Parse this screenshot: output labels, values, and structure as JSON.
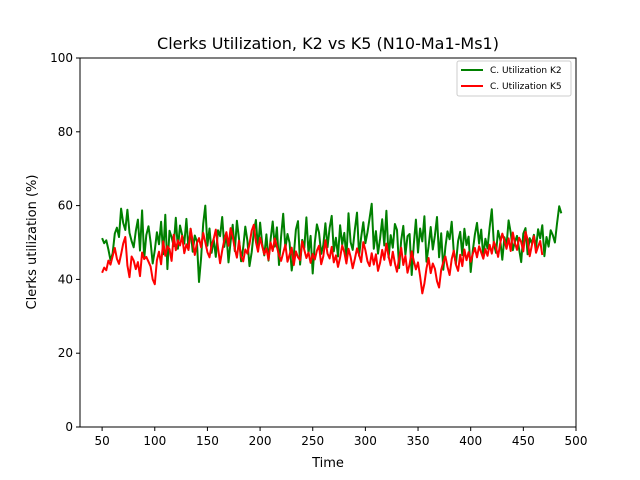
{
  "chart_data": {
    "type": "line",
    "title": "Clerks Utilization, K2 vs K5 (N10-Ma1-Ms1)",
    "xlabel": "Time",
    "ylabel": "Clerks utilization (%)",
    "xlim": [
      29,
      500
    ],
    "ylim": [
      0,
      100
    ],
    "xticks": [
      50,
      100,
      150,
      200,
      250,
      300,
      350,
      400,
      450,
      500
    ],
    "yticks": [
      0,
      20,
      40,
      60,
      80,
      100
    ],
    "grid": false,
    "legend_position": "top-right",
    "x_start": 50,
    "x_step": 2,
    "series": [
      {
        "name": "C. Utilization K2",
        "color": "#008000",
        "values": [
          51.2,
          49.8,
          50.6,
          48.1,
          45.2,
          47.0,
          52.4,
          54.0,
          51.5,
          59.2,
          55.3,
          53.4,
          58.9,
          52.6,
          50.4,
          48.7,
          53.1,
          56.2,
          47.8,
          58.7,
          45.6,
          52.0,
          54.4,
          50.1,
          44.3,
          47.9,
          52.8,
          49.5,
          55.6,
          46.8,
          57.5,
          42.8,
          53.2,
          51.4,
          49.0,
          56.7,
          48.3,
          54.6,
          52.1,
          49.7,
          56.4,
          48.0,
          53.7,
          47.5,
          51.9,
          50.3,
          39.3,
          45.8,
          55.1,
          60.0,
          49.1,
          53.8,
          47.2,
          50.9,
          46.1,
          53.3,
          51.7,
          56.9,
          48.8,
          52.5,
          44.6,
          50.2,
          54.8,
          47.7,
          55.9,
          51.0,
          44.9,
          48.6,
          54.3,
          50.5,
          43.6,
          47.4,
          52.9,
          56.1,
          48.2,
          55.4,
          49.6,
          46.5,
          52.2,
          45.1,
          50.8,
          55.7,
          48.9,
          54.1,
          43.9,
          51.6,
          57.8,
          48.4,
          52.3,
          49.9,
          42.4,
          46.6,
          53.5,
          55.8,
          44.0,
          50.7,
          48.5,
          56.8,
          47.1,
          51.8,
          41.6,
          50.0,
          54.9,
          52.7,
          46.9,
          49.3,
          55.2,
          48.7,
          53.9,
          57.2,
          47.6,
          51.3,
          46.2,
          54.7,
          49.4,
          52.6,
          45.7,
          57.9,
          50.1,
          48.0,
          53.6,
          58.1,
          46.4,
          51.5,
          55.5,
          49.8,
          52.8,
          56.6,
          60.5,
          48.3,
          53.1,
          47.0,
          51.1,
          56.3,
          49.2,
          58.6,
          45.9,
          52.0,
          48.6,
          55.0,
          53.4,
          43.1,
          50.6,
          54.5,
          46.7,
          51.7,
          52.3,
          41.2,
          49.5,
          56.2,
          47.3,
          53.8,
          50.3,
          57.1,
          44.8,
          49.0,
          54.2,
          48.1,
          51.9,
          56.9,
          46.0,
          52.5,
          42.6,
          48.8,
          53.0,
          50.9,
          55.6,
          47.4,
          44.2,
          50.4,
          52.9,
          46.6,
          53.7,
          49.3,
          51.6,
          42.0,
          47.8,
          52.2,
          55.3,
          49.7,
          53.5,
          46.1,
          51.0,
          48.4,
          54.0,
          59.0,
          49.6,
          47.2,
          53.2,
          50.8,
          45.3,
          51.4,
          49.1,
          56.0,
          52.7,
          47.9,
          50.2,
          51.8,
          48.2,
          44.7,
          52.4,
          53.9,
          46.8,
          51.2,
          49.8,
          52.1,
          48.5,
          53.6,
          51.1,
          54.7,
          46.3,
          51.5,
          48.9,
          53.3,
          52.0,
          50.0,
          55.1,
          59.8,
          57.9
        ]
      },
      {
        "name": "C. Utilization K5",
        "color": "#ff0000",
        "values": [
          41.8,
          43.2,
          42.5,
          45.1,
          44.0,
          46.3,
          48.5,
          45.6,
          44.2,
          46.8,
          49.7,
          51.5,
          43.8,
          40.6,
          46.2,
          45.1,
          42.8,
          44.7,
          40.9,
          47.3,
          45.5,
          46.1,
          44.8,
          43.5,
          40.0,
          38.7,
          45.2,
          47.5,
          44.1,
          50.3,
          46.4,
          49.0,
          48.2,
          45.0,
          52.1,
          47.9,
          50.6,
          49.2,
          51.8,
          47.1,
          49.5,
          48.0,
          53.7,
          50.4,
          46.6,
          49.8,
          51.2,
          48.7,
          52.6,
          50.1,
          47.4,
          46.0,
          49.3,
          51.0,
          53.5,
          48.6,
          44.4,
          47.8,
          50.7,
          52.8,
          49.1,
          53.9,
          51.6,
          48.3,
          45.9,
          50.5,
          46.2,
          44.9,
          48.1,
          47.0,
          49.6,
          53.2,
          54.8,
          50.2,
          47.5,
          51.3,
          49.0,
          46.8,
          48.4,
          45.3,
          50.0,
          47.7,
          51.1,
          48.9,
          46.5,
          45.0,
          47.2,
          49.4,
          44.8,
          46.7,
          48.6,
          43.9,
          47.6,
          46.0,
          45.2,
          50.3,
          48.0,
          45.8,
          47.3,
          44.5,
          46.9,
          45.4,
          47.8,
          49.1,
          44.1,
          46.3,
          50.6,
          47.0,
          45.7,
          48.8,
          44.6,
          46.5,
          43.4,
          45.9,
          49.2,
          47.4,
          44.3,
          48.3,
          46.1,
          43.0,
          45.6,
          48.4,
          46.6,
          44.7,
          50.1,
          47.9,
          44.9,
          43.6,
          47.1,
          44.0,
          46.8,
          42.3,
          44.5,
          48.0,
          45.3,
          49.7,
          46.2,
          43.8,
          47.5,
          44.4,
          42.1,
          45.7,
          48.6,
          43.9,
          46.4,
          41.8,
          44.1,
          47.6,
          45.0,
          42.7,
          44.6,
          40.8,
          36.2,
          38.9,
          43.0,
          45.8,
          41.7,
          44.3,
          42.9,
          39.5,
          37.8,
          42.6,
          44.7,
          46.2,
          43.4,
          41.2,
          45.5,
          47.8,
          44.0,
          42.3,
          46.7,
          43.6,
          48.1,
          45.2,
          47.4,
          44.8,
          46.9,
          48.5,
          46.0,
          49.0,
          47.3,
          45.6,
          48.2,
          46.4,
          49.4,
          47.0,
          50.2,
          48.7,
          46.1,
          49.8,
          52.4,
          50.6,
          48.3,
          51.1,
          47.7,
          52.7,
          49.9,
          48.0,
          51.3,
          50.1,
          47.6,
          52.9,
          50.8,
          46.3,
          49.2,
          51.7,
          47.2,
          48.9,
          50.4,
          46.6
        ]
      }
    ]
  }
}
